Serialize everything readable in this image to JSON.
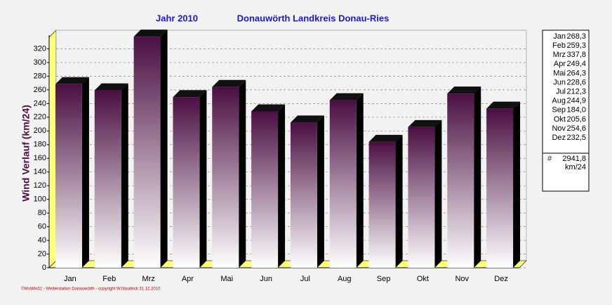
{
  "chart_data": {
    "type": "bar3d",
    "title": "Jahr  2010",
    "subtitle": "Donauwörth Landkreis Donau-Ries",
    "y_label": "Wind Verlauf  (km/24)",
    "footer": "©WsWin32 - Wetterstation Donauwörth - copyright W.Naudeck 31.12.2010",
    "categories": [
      "Jan",
      "Feb",
      "Mrz",
      "Apr",
      "Mai",
      "Jun",
      "Jul",
      "Aug",
      "Sep",
      "Okt",
      "Nov",
      "Dez"
    ],
    "values": [
      268.3,
      259.3,
      337.8,
      249.4,
      264.3,
      228.6,
      212.3,
      244.9,
      184.0,
      205.6,
      254.6,
      232.5
    ],
    "value_labels": [
      "268,3",
      "259,3",
      "337,8",
      "249,4",
      "264,3",
      "228,6",
      "212,3",
      "244,9",
      "184,0",
      "205,6",
      "254,6",
      "232,5"
    ],
    "color": "#4a0f42",
    "ylim": [
      0,
      340
    ],
    "yticks": [
      0,
      20,
      40,
      60,
      80,
      100,
      120,
      140,
      160,
      180,
      200,
      220,
      240,
      260,
      280,
      300,
      320
    ],
    "grid": true,
    "total_marker": "#",
    "total": {
      "value": 2941.8,
      "label": "2941,8"
    },
    "unit": "km/24"
  }
}
